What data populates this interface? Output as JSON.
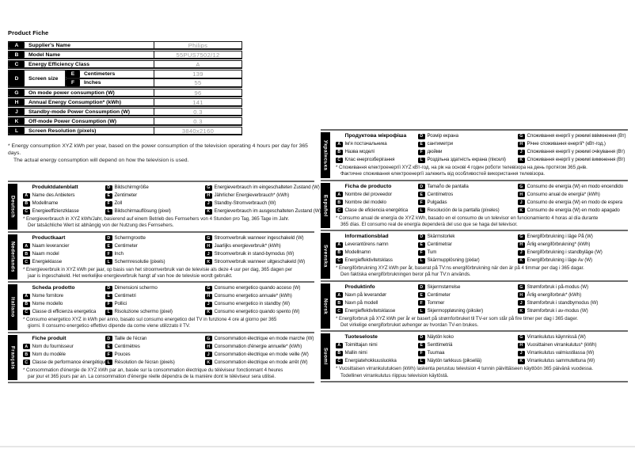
{
  "page": {
    "title": "Product Fiche"
  },
  "colors": {
    "key_badge_bg": "#000000",
    "value_text": "#999999",
    "divider": "#6e6e6e"
  },
  "english_table": {
    "rows": [
      {
        "key": "A",
        "label": "Supplier's Name",
        "value": "Philips"
      },
      {
        "key": "B",
        "label": "Model Name",
        "value": "55PUS7502/12"
      },
      {
        "key": "C",
        "label": "Energy Efficiency Class",
        "value": "A"
      },
      {
        "key": "D",
        "label": "Screen size",
        "sub": [
          {
            "key": "E",
            "label": "Centimeters",
            "value": "139"
          },
          {
            "key": "F",
            "label": "Inches",
            "value": "55"
          }
        ]
      },
      {
        "key": "G",
        "label": "On mode power consumption (W)",
        "value": "96"
      },
      {
        "key": "H",
        "label": "Annual Energy Consumption* (kWh)",
        "value": "141"
      },
      {
        "key": "J",
        "label": "Standby-mode Power Consumption (W)",
        "value": "0.3"
      },
      {
        "key": "K",
        "label": "Off-mode Power Consumption (W)",
        "value": "0.3"
      },
      {
        "key": "L",
        "label": "Screen Resolution (pixels)",
        "value": "3840x2160"
      }
    ],
    "footnote": [
      "* Energy consumption XYZ kWh per year, based on the power consumption of the television operating 4 hours per day for 365 days.",
      "The actual energy consumption will depend on how the television is used."
    ]
  },
  "sections_left": [
    {
      "language": "Deutsch",
      "title": "Produktdatenblatt",
      "col1": [
        {
          "key": "A",
          "label": "Name des Anbieters"
        },
        {
          "key": "B",
          "label": "Modellname"
        },
        {
          "key": "C",
          "label": "Energieeffizienzklasse"
        }
      ],
      "col2": [
        {
          "key": "D",
          "label": "Bildschirmgröße"
        },
        {
          "key": "E",
          "label": "Zentimeter"
        },
        {
          "key": "F",
          "label": "Zoll"
        },
        {
          "key": "L",
          "label": "Bildschirmauflösung (pixel)"
        }
      ],
      "col3": [
        {
          "key": "G",
          "label": "Energieverbrauch im eingeschalteten Zustand (W)"
        },
        {
          "key": "H",
          "label": "Jährlicher Energieverbrauch* (kWh)"
        },
        {
          "key": "J",
          "label": "Standby-Stromverbrauch (W)"
        },
        {
          "key": "K",
          "label": "Energieverbrauch im ausgeschalteten Zustand (W)"
        }
      ],
      "footnote": [
        "* Energieverbrauch in XYZ kWh/Jahr, basierend auf einem Betrieb des Fernsehers von 4 Stunden pro Tag, 365 Tage im Jahr.",
        "Der tatsächliche Wert ist abhängig von der Nutzung des Fernsehers."
      ]
    },
    {
      "language": "Nederlands",
      "title": "Productkaart",
      "col1": [
        {
          "key": "A",
          "label": "Naam leverancier"
        },
        {
          "key": "B",
          "label": "Naam model"
        },
        {
          "key": "C",
          "label": "Energieklasse"
        }
      ],
      "col2": [
        {
          "key": "D",
          "label": "Schermgrootte"
        },
        {
          "key": "E",
          "label": "Centimeter"
        },
        {
          "key": "F",
          "label": "Inch"
        },
        {
          "key": "L",
          "label": "Schermresolutie (pixels)"
        }
      ],
      "col3": [
        {
          "key": "G",
          "label": "Stroomverbruik wanneer ingeschakeld (W)"
        },
        {
          "key": "H",
          "label": "Jaarlijks energieverbruik* (kWh)"
        },
        {
          "key": "J",
          "label": "Stroomverbruik in stand-bymodus (W)"
        },
        {
          "key": "K",
          "label": "Stroomverbruik wanneer uitgeschakeld (W)"
        }
      ],
      "footnote": [
        "* Energieverbruik in XYZ kWh per jaar, op basis van het stroomverbruik van de televisie als deze 4 uur per dag, 365 dagen per",
        "jaar is ingeschakeld. Het werkelijke energieverbruik hangt af van hoe de televisie wordt gebruikt."
      ]
    },
    {
      "language": "Italiano",
      "title": "Scheda prodotto",
      "col1": [
        {
          "key": "A",
          "label": "Nome fornitore"
        },
        {
          "key": "B",
          "label": "Nome modello"
        },
        {
          "key": "C",
          "label": "Classe di efficienza energetica"
        }
      ],
      "col2": [
        {
          "key": "D",
          "label": "Dimensioni schermo"
        },
        {
          "key": "E",
          "label": "Centimetri"
        },
        {
          "key": "F",
          "label": "Pollici"
        },
        {
          "key": "L",
          "label": "Risoluzione schermo (pixel)"
        }
      ],
      "col3": [
        {
          "key": "G",
          "label": "Consumo energetico quando acceso (W)"
        },
        {
          "key": "H",
          "label": "Consumo energetico annuale* (kWh)"
        },
        {
          "key": "J",
          "label": "Consumo energetico in standby (W)"
        },
        {
          "key": "K",
          "label": "Consumo energetico quando spento (W)"
        }
      ],
      "footnote": [
        "* Consumo energetico XYZ in kWh per anno, basato sul consumo energetico del TV in funzione 4 ore al giorno per 365",
        "giorni. Il consumo energetico effettivo dipende da come viene utilizzato il TV."
      ]
    },
    {
      "language": "Français",
      "title": "Fiche produit",
      "col1": [
        {
          "key": "A",
          "label": "Nom du fournisseur"
        },
        {
          "key": "B",
          "label": "Nom du modèle"
        },
        {
          "key": "C",
          "label": "Classe de performance énergétique"
        }
      ],
      "col2": [
        {
          "key": "D",
          "label": "Taille de l'écran"
        },
        {
          "key": "E",
          "label": "Centimètres"
        },
        {
          "key": "F",
          "label": "Pouces"
        },
        {
          "key": "L",
          "label": "Résolution de l'écran (pixels)"
        }
      ],
      "col3": [
        {
          "key": "G",
          "label": "Consommation électrique en mode marche (W)"
        },
        {
          "key": "H",
          "label": "Consommation d'énergie annuelle* (kWh)"
        },
        {
          "key": "J",
          "label": "Consommation électrique en mode veille (W)"
        },
        {
          "key": "K",
          "label": "Consommation électrique en mode arrêt (W)"
        }
      ],
      "footnote": [
        "* Consommation d'énergie de XYZ kWh par an, basée sur la consommation électrique du téléviseur fonctionnant 4 heures",
        "par jour et 365 jours par an. La consommation d'énergie réelle dépendra de la manière dont le téléviseur sera utilisé."
      ]
    }
  ],
  "sections_right": [
    {
      "language": "Українська",
      "title": "Продуктова мікрофіша",
      "col1": [
        {
          "key": "A",
          "label": "Ім'я постачальника"
        },
        {
          "key": "B",
          "label": "Назва моделі"
        },
        {
          "key": "C",
          "label": "Клас енергозберігання"
        }
      ],
      "col2": [
        {
          "key": "D",
          "label": "Розмір екрана"
        },
        {
          "key": "E",
          "label": "сантиметри"
        },
        {
          "key": "F",
          "label": "дюйми"
        },
        {
          "key": "L",
          "label": "Роздільна здатність екрана (пікселі)"
        }
      ],
      "col3": [
        {
          "key": "G",
          "label": "Споживання енергії у режимі ввімкнення (Вт)"
        },
        {
          "key": "H",
          "label": "Річне споживання енергії* (кВт-год.)"
        },
        {
          "key": "J",
          "label": "Споживання енергії у режимі очікування (Вт)"
        },
        {
          "key": "K",
          "label": "Споживання енергії у режимі вимкнення (Вт)"
        }
      ],
      "footnote": [
        "* Споживання електроенергії XYZ кВт-год. на рік на основі 4 годин роботи телевізора на день протягом 365 днів.",
        "Фактичне споживання електроенергії залежить від особливостей використання телевізора."
      ]
    },
    {
      "language": "Español",
      "title": "Ficha de producto",
      "col1": [
        {
          "key": "A",
          "label": "Nombre del proveedor"
        },
        {
          "key": "B",
          "label": "Nombre del modelo"
        },
        {
          "key": "C",
          "label": "Clase de eficiencia energética"
        }
      ],
      "col2": [
        {
          "key": "D",
          "label": "Tamaño de pantalla"
        },
        {
          "key": "E",
          "label": "Centímetros"
        },
        {
          "key": "F",
          "label": "Pulgadas"
        },
        {
          "key": "L",
          "label": "Resolución de la pantalla (píxeles)"
        }
      ],
      "col3": [
        {
          "key": "G",
          "label": "Consumo de energía (W) en modo encendido"
        },
        {
          "key": "H",
          "label": "Consumo anual de energía* (kWh)"
        },
        {
          "key": "J",
          "label": "Consumo de energía (W) en modo de espera"
        },
        {
          "key": "K",
          "label": "Consumo de energía (W) en modo apagado"
        }
      ],
      "footnote": [
        "* Consumo anual de energía de XYZ kWh, basado en el consumo de un televisor en funcionamiento 4 horas al día durante",
        "365 días. El consumo real de energía dependerá del uso que se haga del televisor."
      ]
    },
    {
      "language": "Svenska",
      "title": "Informationsblad",
      "col1": [
        {
          "key": "A",
          "label": "Leverantörens namn"
        },
        {
          "key": "B",
          "label": "Modellnamn"
        },
        {
          "key": "C",
          "label": "Energieffektivitetsklass"
        }
      ],
      "col2": [
        {
          "key": "D",
          "label": "Skärmstorlek"
        },
        {
          "key": "E",
          "label": "Centimetrar"
        },
        {
          "key": "F",
          "label": "Tum"
        },
        {
          "key": "L",
          "label": "Skärmupplösning (pixlar)"
        }
      ],
      "col3": [
        {
          "key": "G",
          "label": "Energiförbrukning i läge På (W)"
        },
        {
          "key": "H",
          "label": "Årlig energiförbrukning* (kWh)"
        },
        {
          "key": "J",
          "label": "Energiförbrukning i standbyläge (W)"
        },
        {
          "key": "K",
          "label": "Energiförbrukning i läge Av (W)"
        }
      ],
      "footnote": [
        "* Energiförbrukning XYZ kWh per år, baserat på TV:ns energiförbrukning när den är på 4 timmar per dag i 365 dagar.",
        "Den faktiska energiförbrukningen beror på hur TV:n används."
      ]
    },
    {
      "language": "Norsk",
      "title": "Produktinfo",
      "col1": [
        {
          "key": "A",
          "label": "Navn på leverandør"
        },
        {
          "key": "B",
          "label": "Navn på modell"
        },
        {
          "key": "C",
          "label": "Energieffektivitetsklasse"
        }
      ],
      "col2": [
        {
          "key": "D",
          "label": "Skjermstørrelse"
        },
        {
          "key": "E",
          "label": "Centimeter"
        },
        {
          "key": "F",
          "label": "Tommer"
        },
        {
          "key": "L",
          "label": "Skjermoppløsning (piksler)"
        }
      ],
      "col3": [
        {
          "key": "G",
          "label": "Strømforbruk i på-modus (W)"
        },
        {
          "key": "H",
          "label": "Årlig energiforbruk* (kWh)"
        },
        {
          "key": "J",
          "label": "Strømforbruk i standbymodus (W)"
        },
        {
          "key": "K",
          "label": "Strømforbruk i av-modus (W)"
        }
      ],
      "footnote": [
        "* Energiforbruk på XYZ kWh per år er basert på strømforbruket til TV-er som står på fire timer per dag i 365 dager.",
        "Det virkelige energiforbruket avhenger av hvordan TV-en brukes."
      ]
    },
    {
      "language": "Suomi",
      "title": "Tuoteseloste",
      "col1": [
        {
          "key": "A",
          "label": "Toimittajan nimi"
        },
        {
          "key": "B",
          "label": "Mallin nimi"
        },
        {
          "key": "C",
          "label": "Energiatehokkuusluokka"
        }
      ],
      "col2": [
        {
          "key": "D",
          "label": "Näytön koko"
        },
        {
          "key": "E",
          "label": "Senttimetriä"
        },
        {
          "key": "F",
          "label": "Tuumaa"
        },
        {
          "key": "L",
          "label": "Näytön tarkkuus (pikseliä)"
        }
      ],
      "col3": [
        {
          "key": "G",
          "label": "Virrankulutus käynnissä (W)"
        },
        {
          "key": "H",
          "label": "Vuosittainen virrankulutus* (kWh)"
        },
        {
          "key": "J",
          "label": "Virrankulutus valmiustilassa (W)"
        },
        {
          "key": "K",
          "label": "Virrankulutus sammutettuna (W)"
        }
      ],
      "footnote": [
        "* Vuosittaisen virrankulutuksen (kWh) laskenta perustuu television 4 tunnin päivittäiseen käyttöön 365 päivänä vuodessa.",
        "Todellinen virrankulutus riippuu television käytöstä."
      ]
    }
  ]
}
